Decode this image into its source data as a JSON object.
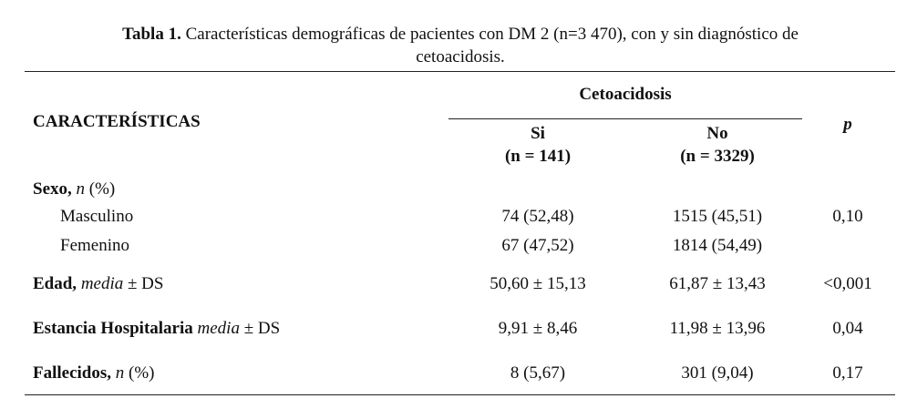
{
  "caption": {
    "label": "Tabla 1.",
    "text_line1": "Características demográficas de pacientes con DM 2 (n=3 470), con y sin diagnóstico de",
    "text_line2": "cetoacidosis."
  },
  "header": {
    "characteristics": "CARACTERÍSTICAS",
    "group": "Cetoacidosis",
    "columns": [
      {
        "name": "Si",
        "n": "(n = 141)"
      },
      {
        "name": "No",
        "n": "(n = 3329)"
      }
    ],
    "p": "p"
  },
  "rows": [
    {
      "label": [
        "Sexo,",
        "n",
        "(%)"
      ]
    },
    {
      "label": "Masculino",
      "si": "74 (52,48)",
      "no": "1515 (45,51)",
      "p": "0,10"
    },
    {
      "label": "Femenino",
      "si": "67 (47,52)",
      "no": "1814 (54,49)"
    },
    {
      "label": [
        "Edad,",
        "media",
        "± DS"
      ],
      "si": "50,60 ± 15,13",
      "no": "61,87 ± 13,43",
      "p": "<0,001"
    },
    {
      "label": [
        "Estancia Hospitalaria",
        "media",
        "± DS"
      ],
      "si": "9,91 ± 8,46",
      "no": "11,98 ± 13,96",
      "p": "0,04"
    },
    {
      "label": [
        "Fallecidos,",
        "n",
        "(%)"
      ],
      "si": "8 (5,67)",
      "no": "301 (9,04)",
      "p": "0,17"
    }
  ]
}
